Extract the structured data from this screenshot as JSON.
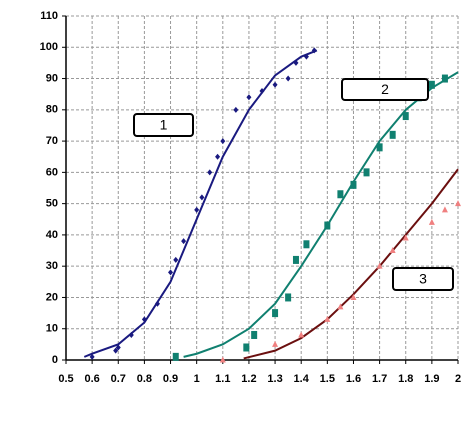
{
  "chart_data": {
    "type": "line",
    "xlim": [
      0.5,
      2
    ],
    "xticks": [
      0.5,
      0.6,
      0.7,
      0.8,
      0.9,
      1,
      1.1,
      1.2,
      1.3,
      1.4,
      1.5,
      1.6,
      1.7,
      1.8,
      1.9,
      2
    ],
    "ylim": [
      0,
      110
    ],
    "yticks": [
      0,
      10,
      20,
      30,
      40,
      50,
      60,
      70,
      80,
      90,
      100,
      110
    ],
    "grid": true,
    "annotations": [
      {
        "text": "1"
      },
      {
        "text": "2"
      },
      {
        "text": "3"
      }
    ],
    "series": [
      {
        "color": "#1a1a80",
        "marker": "none",
        "x": [
          0.57,
          0.6,
          0.7,
          0.8,
          0.9,
          1.0,
          1.1,
          1.2,
          1.3,
          1.4,
          1.46
        ],
        "values": [
          1,
          2,
          5,
          12,
          25,
          45,
          65,
          80,
          91,
          97,
          99
        ]
      },
      {
        "color": "#1a1a80",
        "marker": "diamond",
        "x": [
          0.6,
          0.69,
          0.7,
          0.75,
          0.8,
          0.85,
          0.9,
          0.92,
          0.95,
          1.0,
          1.02,
          1.05,
          1.08,
          1.1,
          1.15,
          1.2,
          1.25,
          1.3,
          1.35,
          1.38,
          1.42,
          1.45
        ],
        "values": [
          1,
          3,
          4,
          8,
          13,
          18,
          28,
          32,
          38,
          48,
          52,
          60,
          65,
          70,
          80,
          84,
          86,
          88,
          90,
          95,
          97,
          99
        ]
      },
      {
        "color": "#108070",
        "marker": "none",
        "x": [
          0.95,
          1.0,
          1.1,
          1.2,
          1.3,
          1.4,
          1.5,
          1.6,
          1.7,
          1.8,
          1.9,
          2.0
        ],
        "values": [
          1,
          2,
          5,
          10,
          18,
          30,
          43,
          57,
          70,
          80,
          87,
          92
        ]
      },
      {
        "color": "#108070",
        "marker": "square",
        "x": [
          0.92,
          1.19,
          1.22,
          1.3,
          1.35,
          1.38,
          1.42,
          1.5,
          1.55,
          1.6,
          1.65,
          1.7,
          1.75,
          1.8,
          1.85,
          1.9,
          1.95
        ],
        "values": [
          1,
          4,
          8,
          15,
          20,
          32,
          37,
          43,
          53,
          56,
          60,
          68,
          72,
          78,
          84,
          88,
          90
        ]
      },
      {
        "color": "#6b0f0f",
        "marker": "none",
        "x": [
          1.18,
          1.3,
          1.4,
          1.5,
          1.6,
          1.7,
          1.8,
          1.9,
          2.0
        ],
        "values": [
          0.5,
          3,
          7,
          13,
          21,
          30,
          40,
          50,
          61
        ]
      },
      {
        "color": "#f08080",
        "marker": "triangle",
        "x": [
          1.1,
          1.3,
          1.4,
          1.5,
          1.55,
          1.6,
          1.7,
          1.75,
          1.8,
          1.9,
          1.95,
          2.0
        ],
        "values": [
          0,
          5,
          8,
          13,
          17,
          20,
          30,
          35,
          39,
          44,
          48,
          50
        ]
      }
    ]
  }
}
